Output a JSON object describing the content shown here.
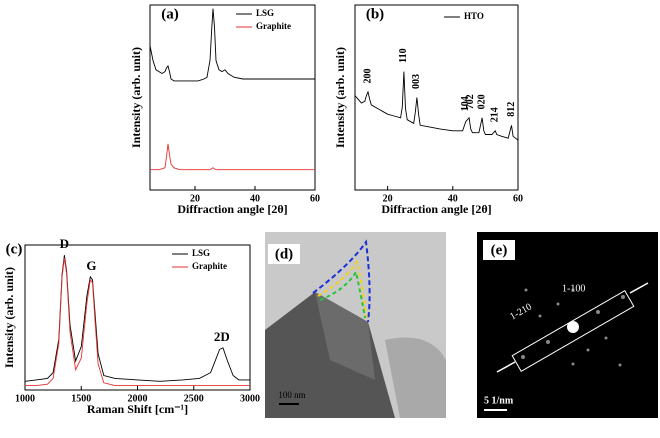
{
  "chart_data": [
    {
      "type": "line",
      "panel_label": "(a)",
      "xlabel": "Diffraction angle [2θ]",
      "ylabel": "Intensity (arb. unit)",
      "xlim": [
        5,
        60
      ],
      "xticks": [
        20,
        40,
        60
      ],
      "ylim": [
        0,
        100
      ],
      "legend": "top-right",
      "series": [
        {
          "name": "LSG",
          "color": "#000000",
          "x": [
            5,
            6,
            7,
            8,
            9,
            10,
            10.5,
            11,
            11.5,
            12,
            13,
            15,
            18,
            21,
            23,
            24,
            25,
            25.5,
            26,
            26.5,
            27,
            28,
            29,
            30,
            31,
            33,
            36,
            40,
            45,
            50,
            55,
            60
          ],
          "values": [
            78,
            70,
            65,
            64,
            63,
            64,
            66,
            67,
            64,
            60,
            59,
            59,
            59,
            59,
            60,
            61,
            70,
            85,
            98,
            88,
            70,
            65,
            64,
            65,
            63,
            61,
            60,
            60,
            60,
            60,
            60,
            60
          ]
        },
        {
          "name": "Graphite",
          "color": "#e8312f",
          "x": [
            5,
            8,
            10,
            10.5,
            11,
            11.5,
            12,
            13,
            15,
            20,
            25,
            26,
            27,
            30,
            40,
            50,
            60
          ],
          "values": [
            11,
            11,
            12,
            18,
            25,
            19,
            14,
            12,
            11,
            11,
            11,
            12,
            11,
            11,
            11,
            11,
            11
          ]
        }
      ]
    },
    {
      "type": "line",
      "panel_label": "(b)",
      "xlabel": "Diffraction angle [2θ]",
      "ylabel": "Intensity (arb. unit)",
      "xlim": [
        10,
        60
      ],
      "xticks": [
        20,
        40,
        60
      ],
      "ylim": [
        0,
        100
      ],
      "legend": "top-right",
      "annotation_orientation": "vertical",
      "series": [
        {
          "name": "HTO",
          "color": "#000000",
          "x": [
            10,
            11,
            12,
            13,
            13.5,
            14,
            14.5,
            15,
            17,
            20,
            22,
            24,
            24.5,
            25,
            25.5,
            26,
            28,
            28.5,
            29,
            29.5,
            30,
            33,
            36,
            40,
            43,
            44,
            44.5,
            45,
            45.5,
            46,
            48,
            48.5,
            49,
            49.5,
            50,
            52,
            53,
            53.5,
            55,
            57,
            58,
            58.5,
            60
          ],
          "values": [
            51,
            49,
            47,
            48,
            51,
            53,
            49,
            46,
            44,
            41,
            40,
            39,
            45,
            64,
            44,
            38,
            36,
            42,
            50,
            41,
            35,
            34,
            33,
            32,
            32,
            37,
            38,
            39,
            33,
            31,
            31,
            35,
            39,
            32,
            30,
            30,
            32,
            30,
            29,
            28,
            35,
            29,
            27
          ]
        }
      ],
      "annotations": [
        {
          "text": "200",
          "x": 14
        },
        {
          "text": "110",
          "x": 25
        },
        {
          "text": "003",
          "x": 29
        },
        {
          "text": "104",
          "x": 44
        },
        {
          "text": "702",
          "x": 45.5
        },
        {
          "text": "020",
          "x": 49
        },
        {
          "text": "214",
          "x": 53
        },
        {
          "text": "812",
          "x": 58
        }
      ]
    },
    {
      "type": "line",
      "panel_label": "(c)",
      "xlabel": "Raman Shift [cm⁻¹]",
      "ylabel": "Intensity (arb. unit)",
      "xlim": [
        1000,
        3000
      ],
      "xticks": [
        1000,
        1500,
        2000,
        2500,
        3000
      ],
      "ylim": [
        0,
        100
      ],
      "legend": "top-right",
      "series": [
        {
          "name": "LSG",
          "color": "#000000",
          "x": [
            1000,
            1100,
            1200,
            1250,
            1300,
            1330,
            1350,
            1370,
            1400,
            1450,
            1500,
            1550,
            1580,
            1600,
            1620,
            1650,
            1700,
            1800,
            2000,
            2200,
            2400,
            2550,
            2650,
            2700,
            2730,
            2760,
            2800,
            2850,
            2900,
            3000
          ],
          "values": [
            6,
            7,
            8,
            12,
            35,
            80,
            93,
            82,
            45,
            20,
            30,
            65,
            78,
            76,
            55,
            25,
            10,
            8,
            7,
            6,
            7,
            8,
            12,
            22,
            28,
            29,
            20,
            10,
            7,
            7
          ]
        },
        {
          "name": "Graphite",
          "color": "#e8312f",
          "x": [
            1000,
            1100,
            1200,
            1250,
            1300,
            1330,
            1350,
            1370,
            1400,
            1450,
            1500,
            1550,
            1580,
            1600,
            1620,
            1650,
            1700,
            1800,
            2000,
            2400,
            2700,
            3000
          ],
          "values": [
            3,
            3,
            4,
            8,
            32,
            78,
            91,
            80,
            40,
            14,
            22,
            60,
            76,
            74,
            50,
            18,
            5,
            3,
            3,
            3,
            3,
            3
          ]
        }
      ],
      "annotations": [
        {
          "text": "D",
          "x": 1350
        },
        {
          "text": "G",
          "x": 1590
        },
        {
          "text": "2D",
          "x": 2750
        }
      ]
    }
  ],
  "images": [
    {
      "label": "(d)",
      "scale_bar": "100 nm"
    },
    {
      "label": "(e)",
      "scale_bar": "5 1/nm",
      "annotations": [
        "1-100",
        "1-210"
      ]
    }
  ]
}
